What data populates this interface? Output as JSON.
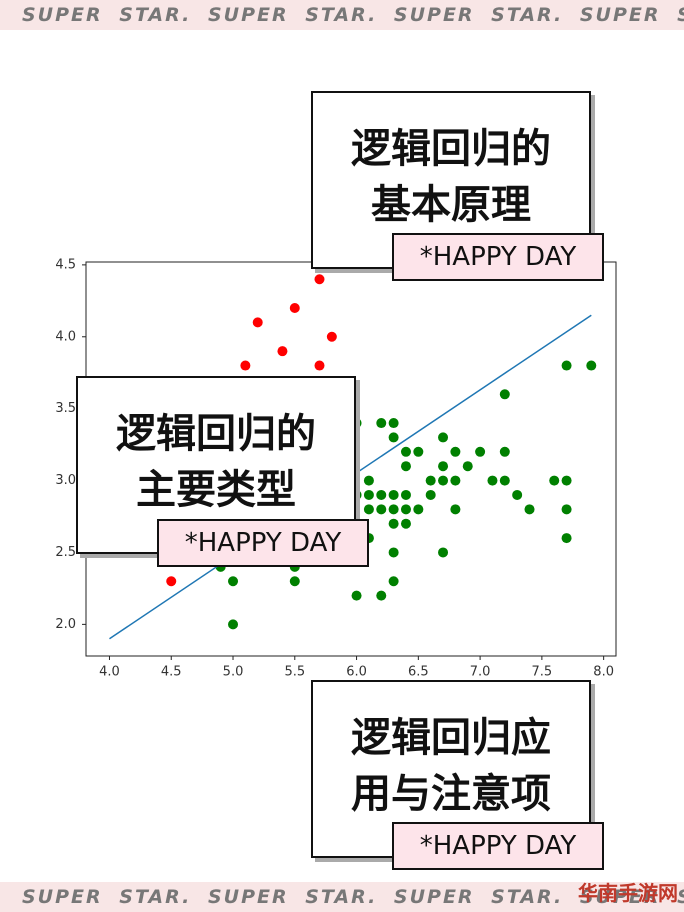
{
  "banner": {
    "top": "SUPER STAR. SUPER STAR. SUPER STAR. SUPER STAR",
    "bottom": "SUPER STAR. SUPER STAR. SUPER STAR. SUPER STAR"
  },
  "cards": [
    {
      "lines": [
        "逻辑回归的",
        "基本原理"
      ],
      "tag": "*HAPPY DAY"
    },
    {
      "lines": [
        "逻辑回归的",
        "主要类型"
      ],
      "tag": "*HAPPY DAY"
    },
    {
      "lines": [
        "逻辑回归应",
        "用与注意项"
      ],
      "tag": "*HAPPY DAY"
    }
  ],
  "watermark": "华南手游网",
  "chart_data": {
    "type": "scatter",
    "xlim": [
      3.81,
      8.1
    ],
    "ylim": [
      1.78,
      4.52
    ],
    "xticks": [
      {
        "value": 4.0,
        "label": "4.0"
      },
      {
        "value": 4.5,
        "label": "4.5"
      },
      {
        "value": 5.0,
        "label": "5.0"
      },
      {
        "value": 5.5,
        "label": "5.5"
      },
      {
        "value": 6.0,
        "label": "6.0"
      },
      {
        "value": 6.5,
        "label": "6.5"
      },
      {
        "value": 7.0,
        "label": "7.0"
      },
      {
        "value": 7.5,
        "label": "7.5"
      },
      {
        "value": 8.0,
        "label": "8.0"
      }
    ],
    "yticks": [
      {
        "value": 2.0,
        "label": "2.0"
      },
      {
        "value": 2.5,
        "label": "2.5"
      },
      {
        "value": 3.0,
        "label": "3.0"
      },
      {
        "value": 3.5,
        "label": "3.5"
      },
      {
        "value": 4.0,
        "label": "4.0"
      },
      {
        "value": 4.5,
        "label": "4.5"
      }
    ],
    "series": [
      {
        "color": "#ff0000",
        "x": [
          5.7,
          5.5,
          5.2,
          5.8,
          5.4,
          5.1,
          5.7,
          4.5
        ],
        "values": [
          4.4,
          4.2,
          4.1,
          4.0,
          3.9,
          3.8,
          3.8,
          2.3
        ]
      },
      {
        "color": "#008000",
        "x": [
          7.7,
          7.9,
          7.2,
          6.3,
          6.2,
          6.0,
          6.3,
          6.4,
          6.5,
          6.7,
          6.8,
          6.9,
          7.0,
          7.2,
          6.7,
          6.4,
          6.1,
          6.6,
          6.7,
          6.8,
          7.1,
          7.2,
          7.6,
          7.7,
          7.3,
          6.0,
          6.1,
          6.2,
          6.3,
          6.4,
          6.6,
          6.1,
          6.2,
          6.3,
          6.4,
          6.5,
          6.8,
          7.4,
          7.7,
          6.3,
          6.4,
          6.1,
          7.7,
          6.3,
          6.7,
          5.5,
          5.5,
          5.0,
          6.3,
          6.0,
          6.2,
          5.0,
          4.9
        ],
        "values": [
          3.8,
          3.8,
          3.6,
          3.4,
          3.4,
          3.4,
          3.3,
          3.2,
          3.2,
          3.3,
          3.2,
          3.1,
          3.2,
          3.2,
          3.1,
          3.1,
          3.0,
          3.0,
          3.0,
          3.0,
          3.0,
          3.0,
          3.0,
          3.0,
          2.9,
          2.9,
          2.9,
          2.9,
          2.9,
          2.9,
          2.9,
          2.8,
          2.8,
          2.8,
          2.8,
          2.8,
          2.8,
          2.8,
          2.8,
          2.7,
          2.7,
          2.6,
          2.6,
          2.5,
          2.5,
          2.4,
          2.3,
          2.3,
          2.3,
          2.2,
          2.2,
          2.0,
          2.4
        ]
      },
      {
        "type": "line",
        "color": "#1f77b4",
        "x": [
          4.0,
          7.9
        ],
        "values": [
          1.9,
          4.15
        ]
      }
    ]
  }
}
